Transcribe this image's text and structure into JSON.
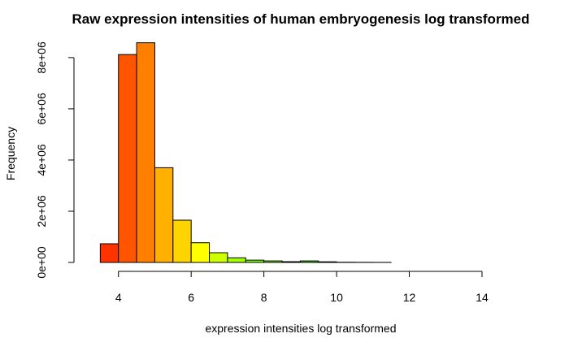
{
  "chart_data": {
    "type": "bar",
    "title": "Raw expression intensities of human embryogenesis log transformed",
    "xlabel": "expression intensities log transformed",
    "ylabel": "Frequency",
    "xlim": [
      3,
      14
    ],
    "ylim": [
      0,
      8600000
    ],
    "x_ticks": [
      4,
      6,
      8,
      10,
      12,
      14
    ],
    "x_tick_labels": [
      "4",
      "6",
      "8",
      "10",
      "12",
      "14"
    ],
    "y_ticks": [
      0,
      2000000,
      4000000,
      6000000,
      8000000
    ],
    "y_tick_labels": [
      "0e+00",
      "2e+06",
      "4e+06",
      "6e+06",
      "8e+06"
    ],
    "bin_width": 0.5,
    "bins": [
      {
        "start": 3.5,
        "end": 4.0,
        "value": 730000,
        "color": "#ff3300"
      },
      {
        "start": 4.0,
        "end": 4.5,
        "value": 8120000,
        "color": "#ff5500"
      },
      {
        "start": 4.5,
        "end": 5.0,
        "value": 8580000,
        "color": "#ff7f00"
      },
      {
        "start": 5.0,
        "end": 5.5,
        "value": 3700000,
        "color": "#ffb000"
      },
      {
        "start": 5.5,
        "end": 6.0,
        "value": 1650000,
        "color": "#ffd400"
      },
      {
        "start": 6.0,
        "end": 6.5,
        "value": 770000,
        "color": "#ffff00"
      },
      {
        "start": 6.5,
        "end": 7.0,
        "value": 380000,
        "color": "#ccff00"
      },
      {
        "start": 7.0,
        "end": 7.5,
        "value": 180000,
        "color": "#a0ff00"
      },
      {
        "start": 7.5,
        "end": 8.0,
        "value": 90000,
        "color": "#80ff00"
      },
      {
        "start": 8.0,
        "end": 8.5,
        "value": 60000,
        "color": "#60f000"
      },
      {
        "start": 8.5,
        "end": 9.0,
        "value": 30000,
        "color": "#44e000"
      },
      {
        "start": 9.0,
        "end": 9.5,
        "value": 60000,
        "color": "#30d000"
      },
      {
        "start": 9.5,
        "end": 10.0,
        "value": 25000,
        "color": "#20c000"
      },
      {
        "start": 10.0,
        "end": 10.5,
        "value": 8000,
        "color": "#18b000"
      },
      {
        "start": 10.5,
        "end": 11.0,
        "value": 4000,
        "color": "#10a000"
      },
      {
        "start": 11.0,
        "end": 11.5,
        "value": 2000,
        "color": "#089000"
      }
    ]
  }
}
